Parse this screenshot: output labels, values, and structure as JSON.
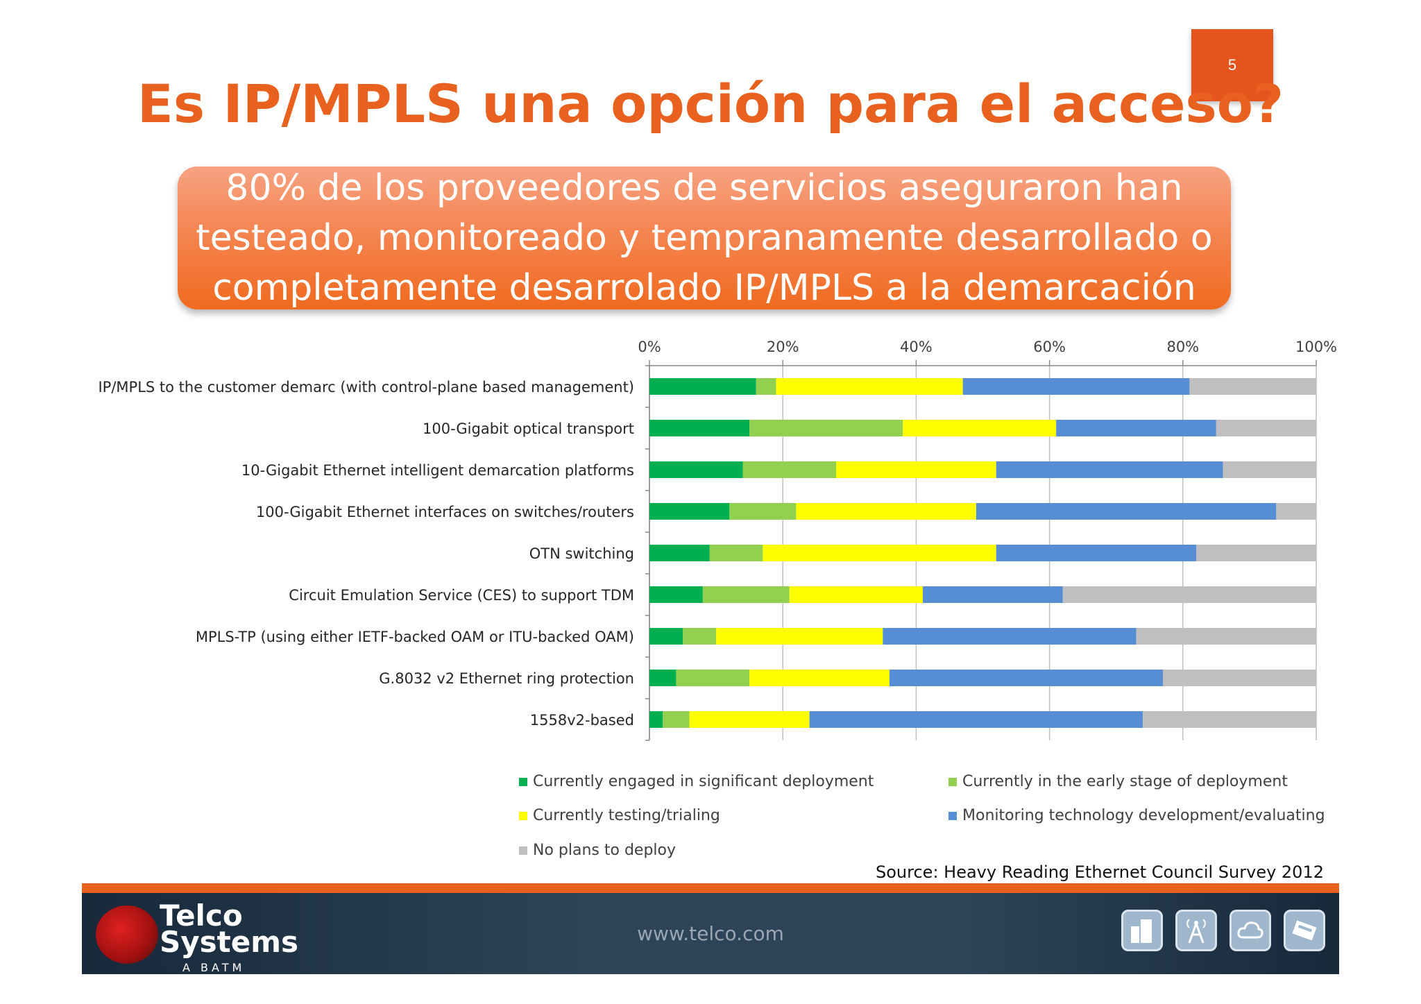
{
  "page_number": "5",
  "title": "Es IP/MPLS una opción para el acceso?",
  "banner_lines": [
    "80%  de los proveedores de servicios aseguraron han",
    "testeado, monitoreado y tempranamente desarrollado o",
    "completamente desarrolado IP/MPLS a la demarcación"
  ],
  "chart_data": {
    "type": "bar",
    "orientation": "horizontal",
    "stacked": true,
    "title": "",
    "xlabel": "",
    "ylabel": "",
    "xlim": [
      0,
      100
    ],
    "x_ticks": [
      "0%",
      "20%",
      "40%",
      "60%",
      "80%",
      "100%"
    ],
    "categories": [
      "IP/MPLS to the customer demarc (with control-plane based management)",
      "100-Gigabit optical transport",
      "10-Gigabit Ethernet intelligent demarcation platforms",
      "100-Gigabit Ethernet interfaces on switches/routers",
      "OTN switching",
      "Circuit Emulation Service (CES) to support TDM",
      "MPLS-TP (using either IETF-backed OAM or ITU-backed OAM)",
      "G.8032 v2 Ethernet ring protection",
      "1558v2-based"
    ],
    "series": [
      {
        "name": "Currently engaged in significant deployment",
        "color": "#00b050",
        "values": [
          16,
          15,
          14,
          12,
          9,
          8,
          5,
          4,
          2
        ]
      },
      {
        "name": "Currently in the early stage of deployment",
        "color": "#92d050",
        "values": [
          3,
          23,
          14,
          10,
          8,
          13,
          5,
          11,
          4
        ]
      },
      {
        "name": "Currently testing/trialing",
        "color": "#ffff00",
        "values": [
          28,
          23,
          24,
          27,
          35,
          20,
          25,
          21,
          18
        ]
      },
      {
        "name": "Monitoring technology development/evaluating",
        "color": "#558ed5",
        "values": [
          34,
          24,
          34,
          45,
          30,
          21,
          38,
          41,
          50
        ]
      },
      {
        "name": "No plans to deploy",
        "color": "#bfbfbf",
        "values": [
          19,
          15,
          14,
          6,
          18,
          38,
          27,
          23,
          26
        ]
      }
    ]
  },
  "source": "Source: Heavy Reading Ethernet Council Survey 2012",
  "footer": {
    "logo_line1": "Telco",
    "logo_line2": "Systems",
    "logo_sub": "A BATM Company",
    "url": "www.telco.com",
    "icons": [
      "buildings-icon",
      "antenna-tower-icon",
      "cloud-icon",
      "network-device-icon"
    ]
  }
}
